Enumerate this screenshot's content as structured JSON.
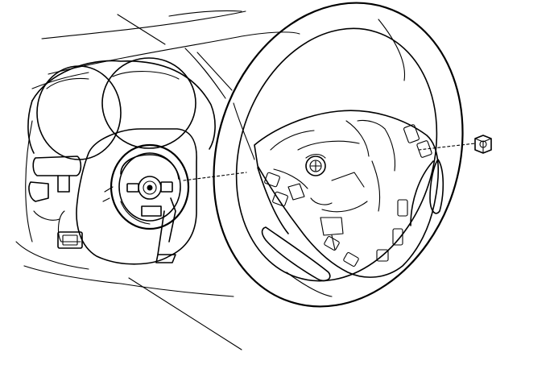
{
  "figure": {
    "type": "line-art illustration",
    "colors": {
      "line": "#000000",
      "background": "#ffffff",
      "shade": "#d8d8d8"
    },
    "parts": [
      "dashboard",
      "instrument-cluster",
      "clock-spring",
      "steering-wheel",
      "mounting-nut"
    ]
  }
}
